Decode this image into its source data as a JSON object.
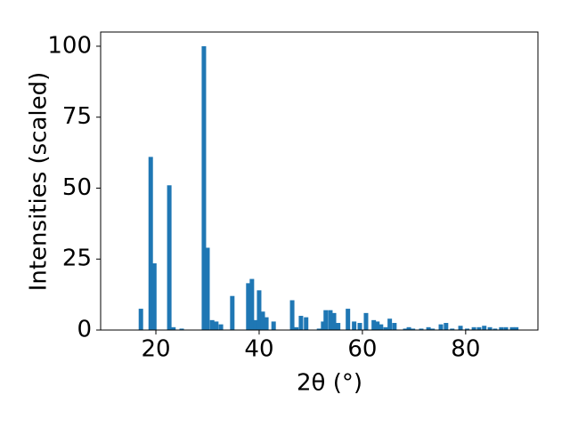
{
  "chart_data": {
    "type": "bar",
    "color": "#1f77b4",
    "xlabel": "2θ (°)",
    "ylabel": "Intensities (scaled)",
    "x": [
      17.1,
      19.0,
      19.7,
      22.6,
      23.4,
      25.0,
      29.3,
      30.0,
      30.9,
      31.7,
      32.6,
      34.8,
      37.9,
      38.6,
      39.3,
      40.0,
      40.7,
      41.4,
      42.8,
      46.4,
      47.2,
      48.1,
      49.1,
      51.6,
      52.4,
      52.9,
      53.8,
      54.5,
      55.3,
      57.2,
      58.4,
      59.5,
      60.7,
      62.2,
      62.9,
      63.6,
      64.5,
      65.3,
      66.2,
      68.3,
      69.0,
      69.8,
      71.4,
      72.8,
      73.6,
      75.2,
      76.2,
      77.4,
      79.0,
      80.3,
      81.6,
      82.6,
      83.6,
      84.7,
      85.7,
      86.9,
      87.8,
      89.0,
      89.8
    ],
    "values": [
      7.5,
      61,
      23.5,
      51,
      1,
      0.5,
      100,
      29,
      3.5,
      3,
      2,
      12,
      16.5,
      18,
      3.5,
      14,
      6.5,
      4.5,
      3,
      10.5,
      1,
      5,
      4.5,
      0.5,
      3,
      7,
      7,
      6,
      2.5,
      7.5,
      3,
      2.5,
      6,
      3.5,
      3,
      2,
      1,
      4,
      2.5,
      0.5,
      1,
      0.5,
      0.5,
      1,
      0.5,
      2,
      2.5,
      0.5,
      1.5,
      0.5,
      1,
      1,
      1.5,
      1,
      0.5,
      1,
      1,
      1,
      1
    ],
    "xlim": [
      9.3,
      94.0
    ],
    "xticks": [
      20,
      40,
      60,
      80
    ],
    "ylim": [
      0,
      105
    ],
    "yticks": [
      0,
      25,
      50,
      75,
      100
    ]
  }
}
